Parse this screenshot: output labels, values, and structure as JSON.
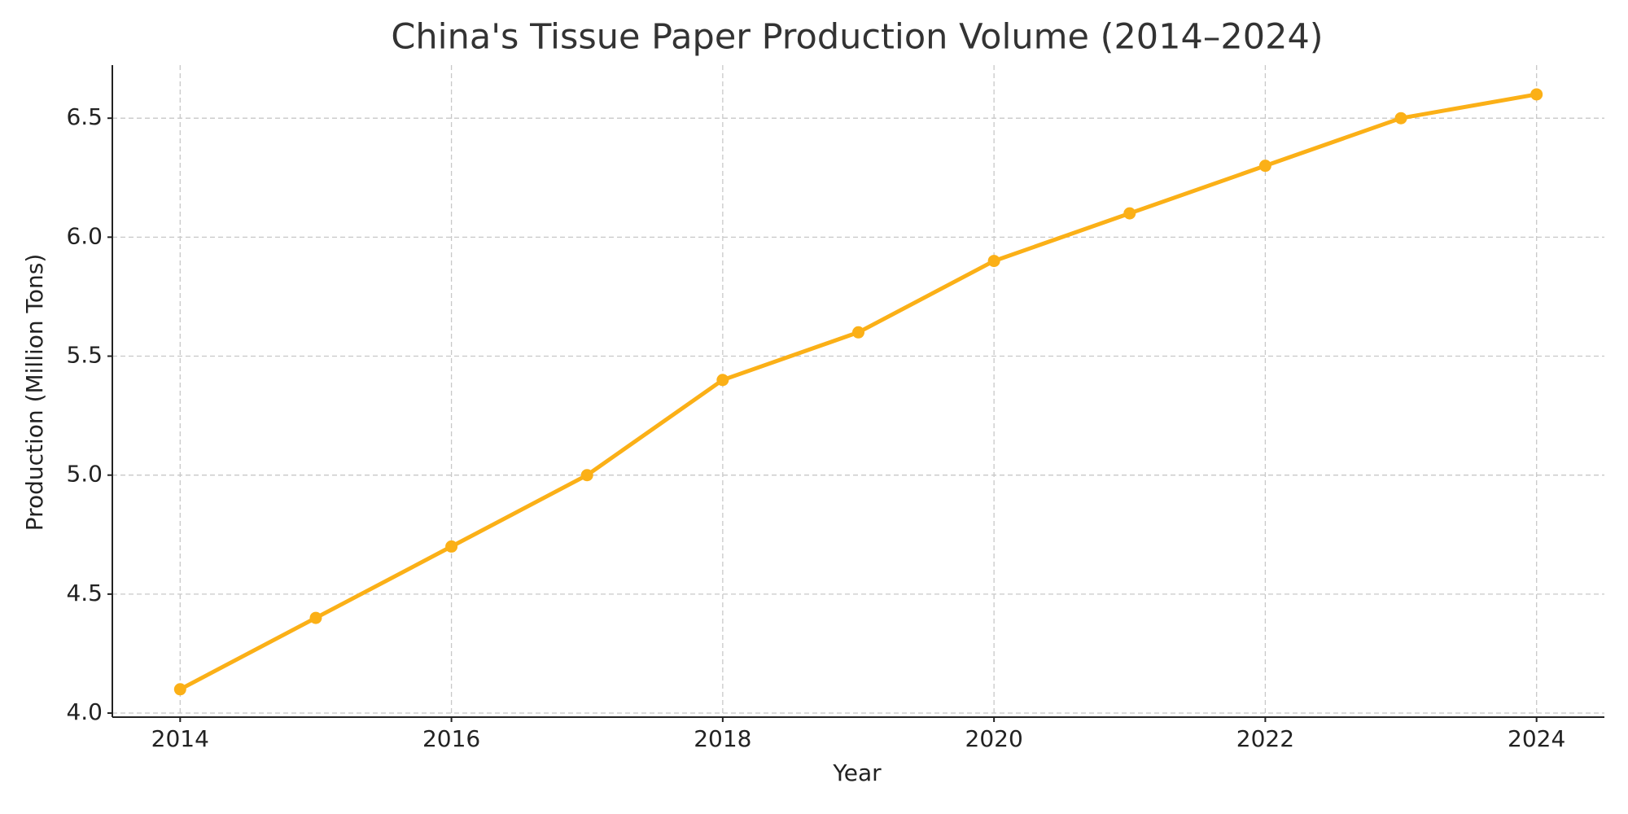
{
  "chart_data": {
    "type": "line",
    "title": "China's Tissue Paper Production Volume (2014–2024)",
    "x_label": "Year",
    "y_label": "Production (Million Tons)",
    "x": [
      2014,
      2015,
      2016,
      2017,
      2018,
      2019,
      2020,
      2021,
      2022,
      2023,
      2024
    ],
    "values": [
      4.1,
      4.4,
      4.7,
      5.0,
      5.4,
      5.6,
      5.9,
      6.1,
      6.3,
      6.5,
      6.6
    ],
    "color": "#fbb017",
    "xlim": [
      2013.5,
      2024.5
    ],
    "xticks": [
      2014,
      2016,
      2018,
      2020,
      2022,
      2024
    ],
    "ylim": [
      3.983,
      6.723
    ],
    "yticks": [
      {
        "value": 4,
        "label": "4.0"
      },
      4.5,
      {
        "value": 5,
        "label": "5.0"
      },
      5.5,
      {
        "value": 6,
        "label": "6.0"
      },
      6.5
    ],
    "grid": true
  }
}
